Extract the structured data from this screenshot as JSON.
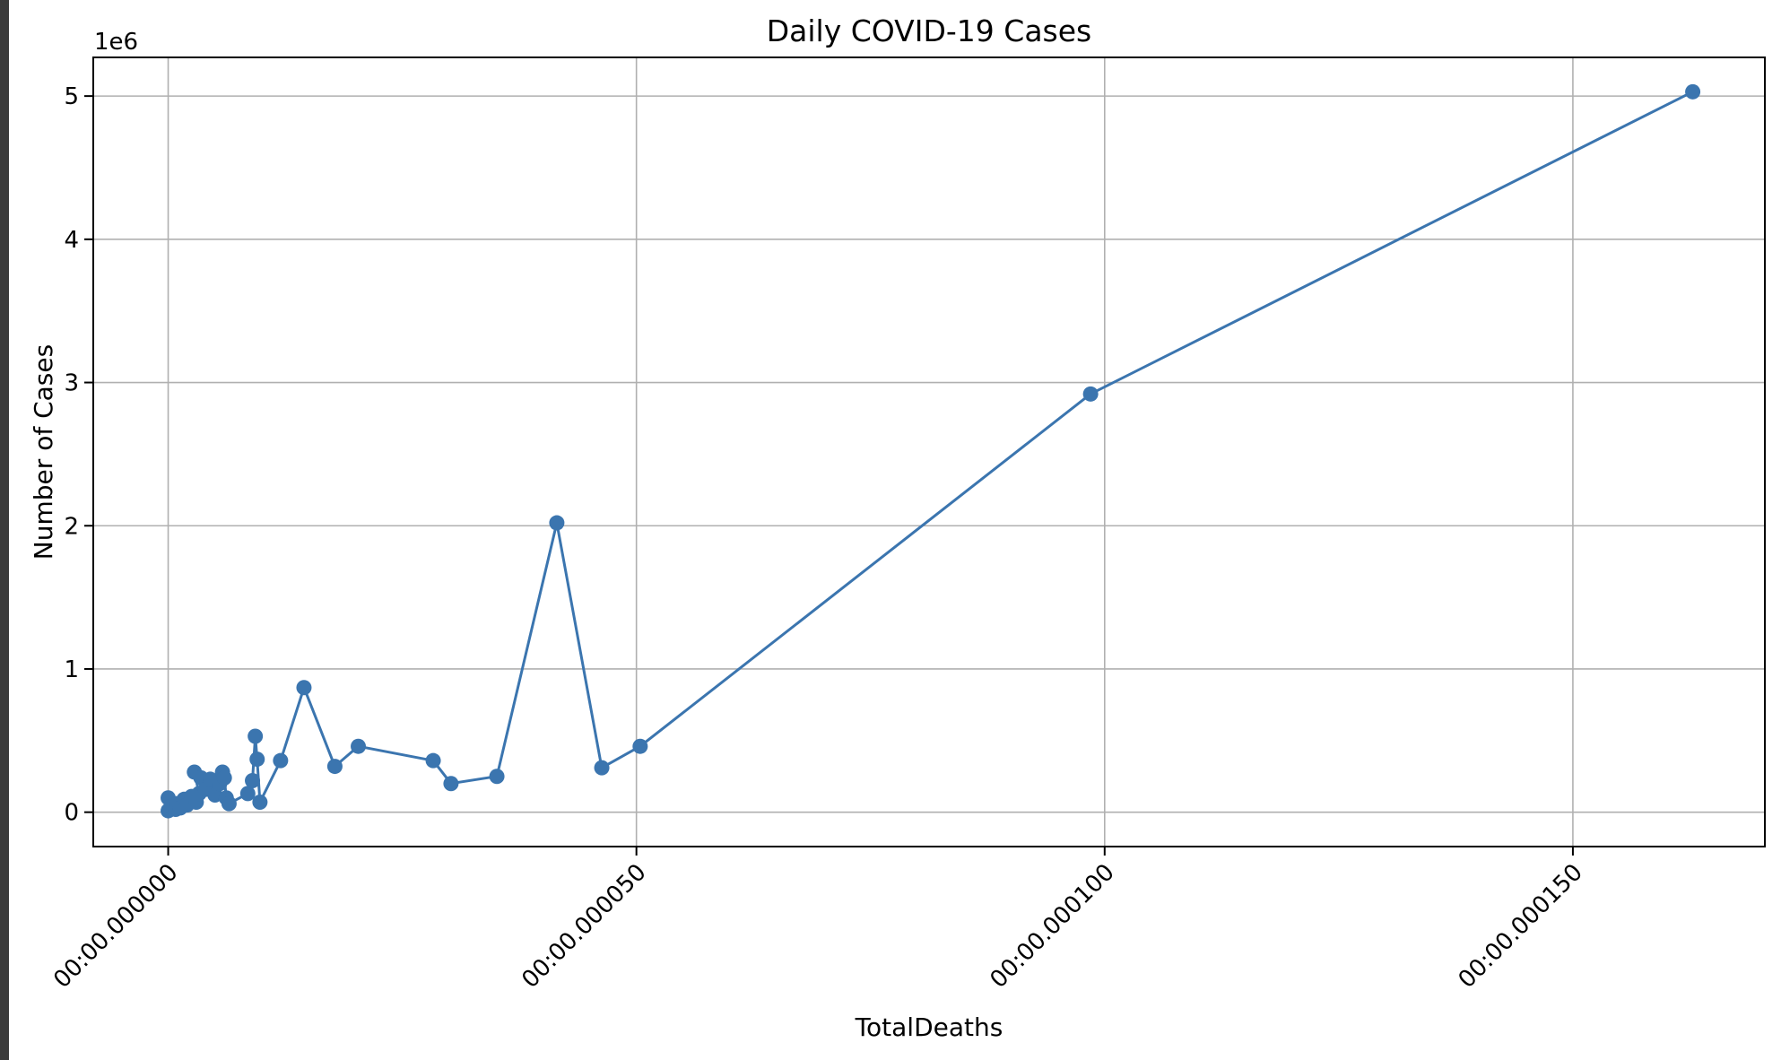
{
  "chart_data": {
    "type": "line",
    "title": "Daily COVID-19 Cases",
    "xlabel": "TotalDeaths",
    "ylabel": "Number of Cases",
    "y_offset_label": "1e6",
    "xlim": [
      -8e-06,
      0.0001705
    ],
    "ylim": [
      -240000,
      5270000
    ],
    "grid": true,
    "x_ticks": [
      {
        "value": 0,
        "label": "00:00.000000"
      },
      {
        "value": 5e-05,
        "label": "00:00.000050"
      },
      {
        "value": 0.0001,
        "label": "00:00.000100"
      },
      {
        "value": 0.00015,
        "label": "00:00.000150"
      }
    ],
    "y_ticks": [
      {
        "value": 0,
        "label": "0"
      },
      {
        "value": 1000000,
        "label": "1"
      },
      {
        "value": 2000000,
        "label": "2"
      },
      {
        "value": 3000000,
        "label": "3"
      },
      {
        "value": 4000000,
        "label": "4"
      },
      {
        "value": 5000000,
        "label": "5"
      }
    ],
    "series": [
      {
        "color": "#3b75af",
        "points": [
          [
            0.0,
            10000
          ],
          [
            0.0,
            100000
          ],
          [
            3e-07,
            40000
          ],
          [
            8e-07,
            20000
          ],
          [
            1e-06,
            60000
          ],
          [
            1.3e-06,
            30000
          ],
          [
            1.7e-06,
            90000
          ],
          [
            2e-06,
            50000
          ],
          [
            2.5e-06,
            110000
          ],
          [
            3e-06,
            70000
          ],
          [
            3.3e-06,
            130000
          ],
          [
            2.8e-06,
            280000
          ],
          [
            3.5e-06,
            240000
          ],
          [
            4e-06,
            160000
          ],
          [
            4.5e-06,
            230000
          ],
          [
            5e-06,
            120000
          ],
          [
            5.5e-06,
            200000
          ],
          [
            5.8e-06,
            280000
          ],
          [
            6e-06,
            240000
          ],
          [
            6.2e-06,
            100000
          ],
          [
            6.5e-06,
            60000
          ],
          [
            8.5e-06,
            130000
          ],
          [
            9e-06,
            220000
          ],
          [
            9.3e-06,
            530000
          ],
          [
            9.5e-06,
            370000
          ],
          [
            9.8e-06,
            70000
          ],
          [
            1.2e-05,
            360000
          ],
          [
            1.45e-05,
            870000
          ],
          [
            1.78e-05,
            320000
          ],
          [
            2.03e-05,
            460000
          ],
          [
            2.83e-05,
            360000
          ],
          [
            3.02e-05,
            200000
          ],
          [
            3.51e-05,
            250000
          ],
          [
            4.15e-05,
            2020000
          ],
          [
            4.63e-05,
            310000
          ],
          [
            5.04e-05,
            460000
          ],
          [
            9.85e-05,
            2920000
          ],
          [
            0.0001628,
            5030000
          ]
        ]
      }
    ]
  }
}
